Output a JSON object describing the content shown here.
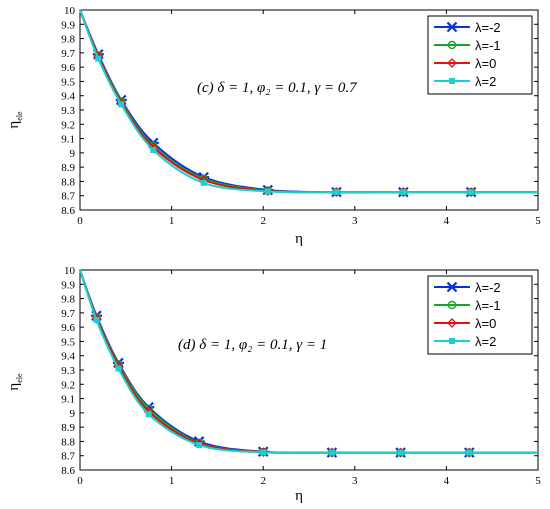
{
  "colors": {
    "series": [
      "#0a31d8",
      "#18a828",
      "#e01010",
      "#1ecfd0"
    ],
    "axis": "#000000",
    "background": "#ffffff"
  },
  "chart_data": [
    {
      "type": "line",
      "annotation": "(c)  δ = 1, φ₂ = 0.1, γ = 0.7",
      "xlabel": "η",
      "ylabel": "η",
      "ylabel_sub": "ele",
      "xlim": [
        0,
        5
      ],
      "ylim": [
        8.6,
        10.0
      ],
      "xticks": [
        "0",
        "1",
        "2",
        "3",
        "4",
        "5"
      ],
      "yticks": [
        "8.6",
        "8.7",
        "8.8",
        "8.9",
        "9",
        "9.1",
        "9.2",
        "9.3",
        "9.4",
        "9.5",
        "9.6",
        "9.7",
        "9.8",
        "9.9",
        "10"
      ],
      "legend_position": "top-right",
      "grid": false,
      "series": [
        {
          "name": "λ=-2",
          "marker": "star",
          "x": [
            0,
            0.2,
            0.45,
            0.8,
            1.35,
            2.05,
            2.8,
            3.53,
            4.27,
            5.0
          ],
          "y": [
            10.0,
            9.69,
            9.37,
            9.07,
            8.83,
            8.74,
            8.725,
            8.725,
            8.725,
            8.725
          ]
        },
        {
          "name": "λ=-1",
          "marker": "circle",
          "x": [
            0,
            0.2,
            0.45,
            0.8,
            1.35,
            2.05,
            2.8,
            3.53,
            4.27,
            5.0
          ],
          "y": [
            10.0,
            9.68,
            9.36,
            9.05,
            8.82,
            8.735,
            8.725,
            8.725,
            8.725,
            8.725
          ]
        },
        {
          "name": "λ=0",
          "marker": "diamond",
          "x": [
            0,
            0.2,
            0.45,
            0.8,
            1.35,
            2.05,
            2.8,
            3.53,
            4.27,
            5.0
          ],
          "y": [
            10.0,
            9.675,
            9.35,
            9.04,
            8.81,
            8.733,
            8.725,
            8.725,
            8.725,
            8.725
          ]
        },
        {
          "name": "λ=2",
          "marker": "square",
          "x": [
            0,
            0.2,
            0.45,
            0.8,
            1.35,
            2.05,
            2.8,
            3.53,
            4.27,
            5.0
          ],
          "y": [
            10.0,
            9.66,
            9.34,
            9.02,
            8.79,
            8.73,
            8.725,
            8.725,
            8.725,
            8.725
          ]
        }
      ]
    },
    {
      "type": "line",
      "annotation": "(d)  δ = 1, φ₂ = 0.1, γ = 1",
      "xlabel": "η",
      "ylabel": "η",
      "ylabel_sub": "ele",
      "xlim": [
        0,
        5
      ],
      "ylim": [
        8.6,
        10.0
      ],
      "xticks": [
        "0",
        "1",
        "2",
        "3",
        "4",
        "5"
      ],
      "yticks": [
        "8.6",
        "8.7",
        "8.8",
        "8.9",
        "9",
        "9.1",
        "9.2",
        "9.3",
        "9.4",
        "9.5",
        "9.6",
        "9.7",
        "9.8",
        "9.9",
        "10"
      ],
      "legend_position": "top-right",
      "grid": false,
      "series": [
        {
          "name": "λ=-2",
          "marker": "star",
          "x": [
            0,
            0.18,
            0.42,
            0.75,
            1.3,
            2.0,
            2.75,
            3.5,
            4.25,
            5.0
          ],
          "y": [
            10.0,
            9.68,
            9.35,
            9.04,
            8.8,
            8.728,
            8.722,
            8.722,
            8.722,
            8.722
          ]
        },
        {
          "name": "λ=-1",
          "marker": "circle",
          "x": [
            0,
            0.18,
            0.42,
            0.75,
            1.3,
            2.0,
            2.75,
            3.5,
            4.25,
            5.0
          ],
          "y": [
            10.0,
            9.67,
            9.34,
            9.03,
            8.79,
            8.726,
            8.722,
            8.722,
            8.722,
            8.722
          ]
        },
        {
          "name": "λ=0",
          "marker": "diamond",
          "x": [
            0,
            0.18,
            0.42,
            0.75,
            1.3,
            2.0,
            2.75,
            3.5,
            4.25,
            5.0
          ],
          "y": [
            10.0,
            9.66,
            9.33,
            9.01,
            8.785,
            8.725,
            8.722,
            8.722,
            8.722,
            8.722
          ]
        },
        {
          "name": "λ=2",
          "marker": "square",
          "x": [
            0,
            0.18,
            0.42,
            0.75,
            1.3,
            2.0,
            2.75,
            3.5,
            4.25,
            5.0
          ],
          "y": [
            10.0,
            9.65,
            9.31,
            8.99,
            8.775,
            8.723,
            8.722,
            8.722,
            8.722,
            8.722
          ]
        }
      ]
    }
  ]
}
